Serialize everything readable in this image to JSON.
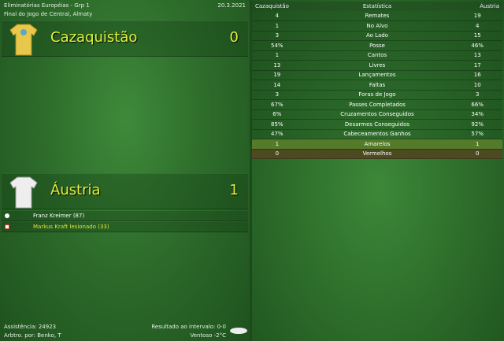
{
  "header": {
    "competition": "Eliminatórias Européias - Grp 1",
    "venue": "Final do Jogo de Central, Almaty",
    "date": "20.3.2021"
  },
  "home": {
    "name": "Cazaquistão",
    "score": "0",
    "shirt_color": "#e8c84a"
  },
  "away": {
    "name": "Áustria",
    "score": "1",
    "shirt_color": "#eeeeee"
  },
  "events": [
    {
      "icon": "ball-icon",
      "text": "Franz Kreimer (87)",
      "color": "#ffffff"
    },
    {
      "icon": "injury-icon",
      "text": "Markus Kraft lesionado (33)",
      "color": "#e4e23a"
    }
  ],
  "footer": {
    "attendance": "Assistência: 24923",
    "referee": "Arbtro. por: Benko, T",
    "halftime": "Resultado ao intervalo: 0-0",
    "weather": "Ventoso -2°C"
  },
  "stats": {
    "headers": [
      "Cazaquistão",
      "Estatística",
      "Áustria"
    ],
    "rows": [
      [
        "4",
        "Remates",
        "19"
      ],
      [
        "1",
        "No Alvo",
        "4"
      ],
      [
        "3",
        "Ao Lado",
        "15"
      ],
      [
        "54%",
        "Posse",
        "46%"
      ],
      [
        "1",
        "Cantos",
        "13"
      ],
      [
        "13",
        "Livres",
        "17"
      ],
      [
        "19",
        "Lançamentos",
        "16"
      ],
      [
        "14",
        "Faltas",
        "10"
      ],
      [
        "3",
        "Foras de Jogo",
        "3"
      ],
      [
        "67%",
        "Passes Completados",
        "66%"
      ],
      [
        "6%",
        "Cruzamentos Conseguidos",
        "34%"
      ],
      [
        "85%",
        "Desarmes Conseguidos",
        "92%"
      ],
      [
        "47%",
        "Cabeceamentos Ganhos",
        "57%"
      ],
      [
        "1",
        "Amarelos",
        "1"
      ],
      [
        "0",
        "Vermelhos",
        "0"
      ]
    ]
  }
}
